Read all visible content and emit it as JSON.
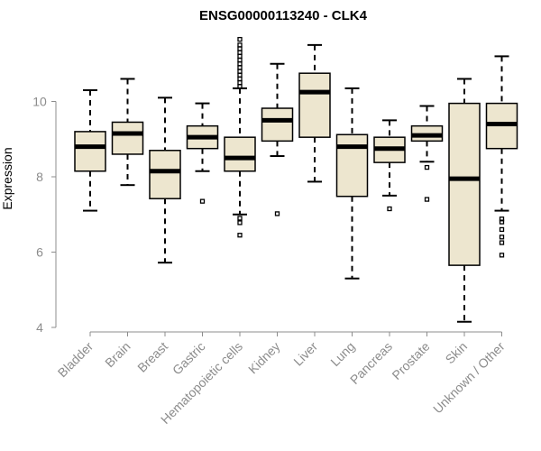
{
  "chart_data": {
    "type": "boxplot",
    "title": "ENSG00000113240 - CLK4",
    "xlabel": "",
    "ylabel": "Expression",
    "ylim": [
      4,
      12
    ],
    "yticks": [
      4,
      6,
      8,
      10
    ],
    "grid": false,
    "legend": "none",
    "colors": {
      "box_fill": "#ede6cf",
      "box_stroke": "#000000",
      "axis": "#8c8c8c",
      "label": "#8c8c8c"
    },
    "categories": [
      "Bladder",
      "Brain",
      "Breast",
      "Gastric",
      "Hematopoietic cells",
      "Kidney",
      "Liver",
      "Lung",
      "Pancreas",
      "Prostate",
      "Skin",
      "Unknown / Other"
    ],
    "boxes": [
      {
        "category": "Bladder",
        "whisker_low": 7.1,
        "q1": 8.15,
        "median": 8.8,
        "q3": 9.2,
        "whisker_high": 10.3,
        "outliers": []
      },
      {
        "category": "Brain",
        "whisker_low": 7.78,
        "q1": 8.6,
        "median": 9.15,
        "q3": 9.45,
        "whisker_high": 10.6,
        "outliers": []
      },
      {
        "category": "Breast",
        "whisker_low": 5.72,
        "q1": 7.42,
        "median": 8.15,
        "q3": 8.7,
        "whisker_high": 10.1,
        "outliers": []
      },
      {
        "category": "Gastric",
        "whisker_low": 8.15,
        "q1": 8.75,
        "median": 9.05,
        "q3": 9.35,
        "whisker_high": 9.95,
        "outliers": [
          7.35
        ]
      },
      {
        "category": "Hematopoietic cells",
        "whisker_low": 7.0,
        "q1": 8.15,
        "median": 8.5,
        "q3": 9.05,
        "whisker_high": 10.35,
        "outliers": [
          6.45,
          6.78,
          6.9,
          10.4,
          10.5,
          10.6,
          10.7,
          10.8,
          10.9,
          11.0,
          11.1,
          11.2,
          11.3,
          11.4,
          11.5,
          11.65
        ]
      },
      {
        "category": "Kidney",
        "whisker_low": 8.55,
        "q1": 8.95,
        "median": 9.5,
        "q3": 9.82,
        "whisker_high": 11.0,
        "outliers": [
          7.02
        ]
      },
      {
        "category": "Liver",
        "whisker_low": 7.87,
        "q1": 9.05,
        "median": 10.25,
        "q3": 10.75,
        "whisker_high": 11.5,
        "outliers": []
      },
      {
        "category": "Lung",
        "whisker_low": 5.3,
        "q1": 7.48,
        "median": 8.8,
        "q3": 9.12,
        "whisker_high": 10.35,
        "outliers": []
      },
      {
        "category": "Pancreas",
        "whisker_low": 7.5,
        "q1": 8.38,
        "median": 8.75,
        "q3": 9.05,
        "whisker_high": 9.5,
        "outliers": [
          7.15
        ]
      },
      {
        "category": "Prostate",
        "whisker_low": 8.4,
        "q1": 8.95,
        "median": 9.1,
        "q3": 9.35,
        "whisker_high": 9.88,
        "outliers": [
          8.25,
          7.4
        ]
      },
      {
        "category": "Skin",
        "whisker_low": 4.15,
        "q1": 5.65,
        "median": 7.95,
        "q3": 9.95,
        "whisker_high": 10.6,
        "outliers": []
      },
      {
        "category": "Unknown / Other",
        "whisker_low": 7.1,
        "q1": 8.75,
        "median": 9.4,
        "q3": 9.95,
        "whisker_high": 11.2,
        "outliers": [
          5.92,
          6.25,
          6.4,
          6.6,
          6.8,
          6.88
        ]
      }
    ]
  }
}
